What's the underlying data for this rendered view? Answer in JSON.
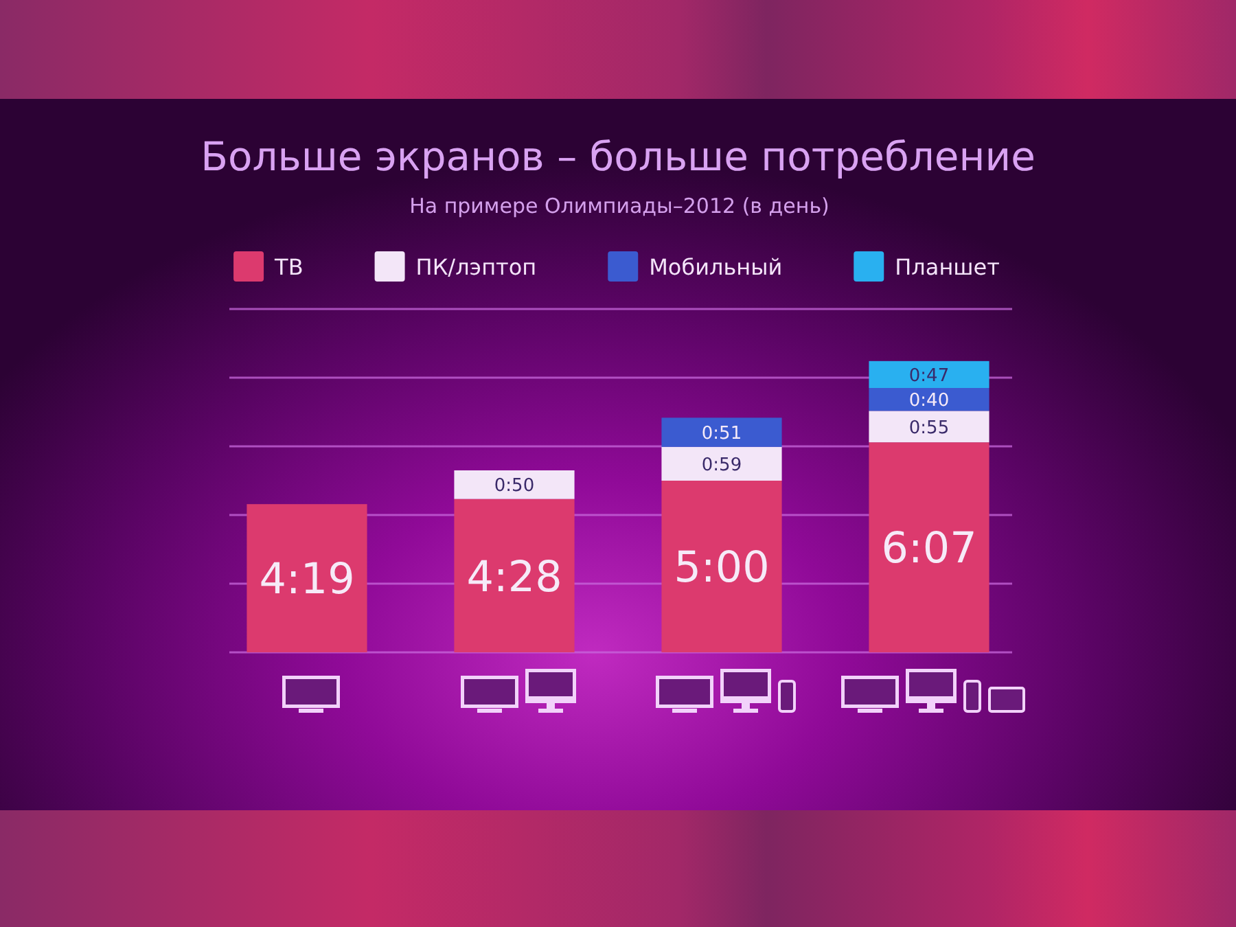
{
  "chart_data": {
    "type": "bar",
    "title": "Больше экранов – больше потребление",
    "subtitle": "На примере Олимпиады–2012 (в день)",
    "categories": [
      null,
      null,
      null,
      null
    ],
    "stacked": true,
    "series": [
      {
        "name": "ТВ",
        "color": "#dc3a6e",
        "values": [
          259,
          268,
          300,
          367
        ],
        "value_labels": [
          "4:19",
          "4:28",
          "5:00",
          "6:07"
        ]
      },
      {
        "name": "ПК/лэптоп",
        "color": "#f3e6f8",
        "values": [
          null,
          50,
          59,
          55
        ],
        "value_labels": [
          null,
          "0:50",
          "0:59",
          "0:55"
        ]
      },
      {
        "name": "Мобильный",
        "color": "#3b5bd0",
        "values": [
          null,
          null,
          51,
          40
        ],
        "value_labels": [
          null,
          null,
          "0:51",
          "0:40"
        ]
      },
      {
        "name": "Планшет",
        "color": "#29b0f0",
        "values": [
          null,
          null,
          null,
          47
        ],
        "value_labels": [
          null,
          null,
          null,
          "0:47"
        ]
      }
    ],
    "ylim": [
      0,
      600
    ],
    "yticks": [
      {
        "value": 0,
        "label": null
      },
      {
        "value": 120,
        "label": null
      },
      {
        "value": 240,
        "label": null
      },
      {
        "value": 360,
        "label": null
      },
      {
        "value": 480,
        "label": null
      },
      {
        "value": 600,
        "label": null
      }
    ],
    "grid": "y",
    "legend": "top",
    "tick_labels": false
  }
}
